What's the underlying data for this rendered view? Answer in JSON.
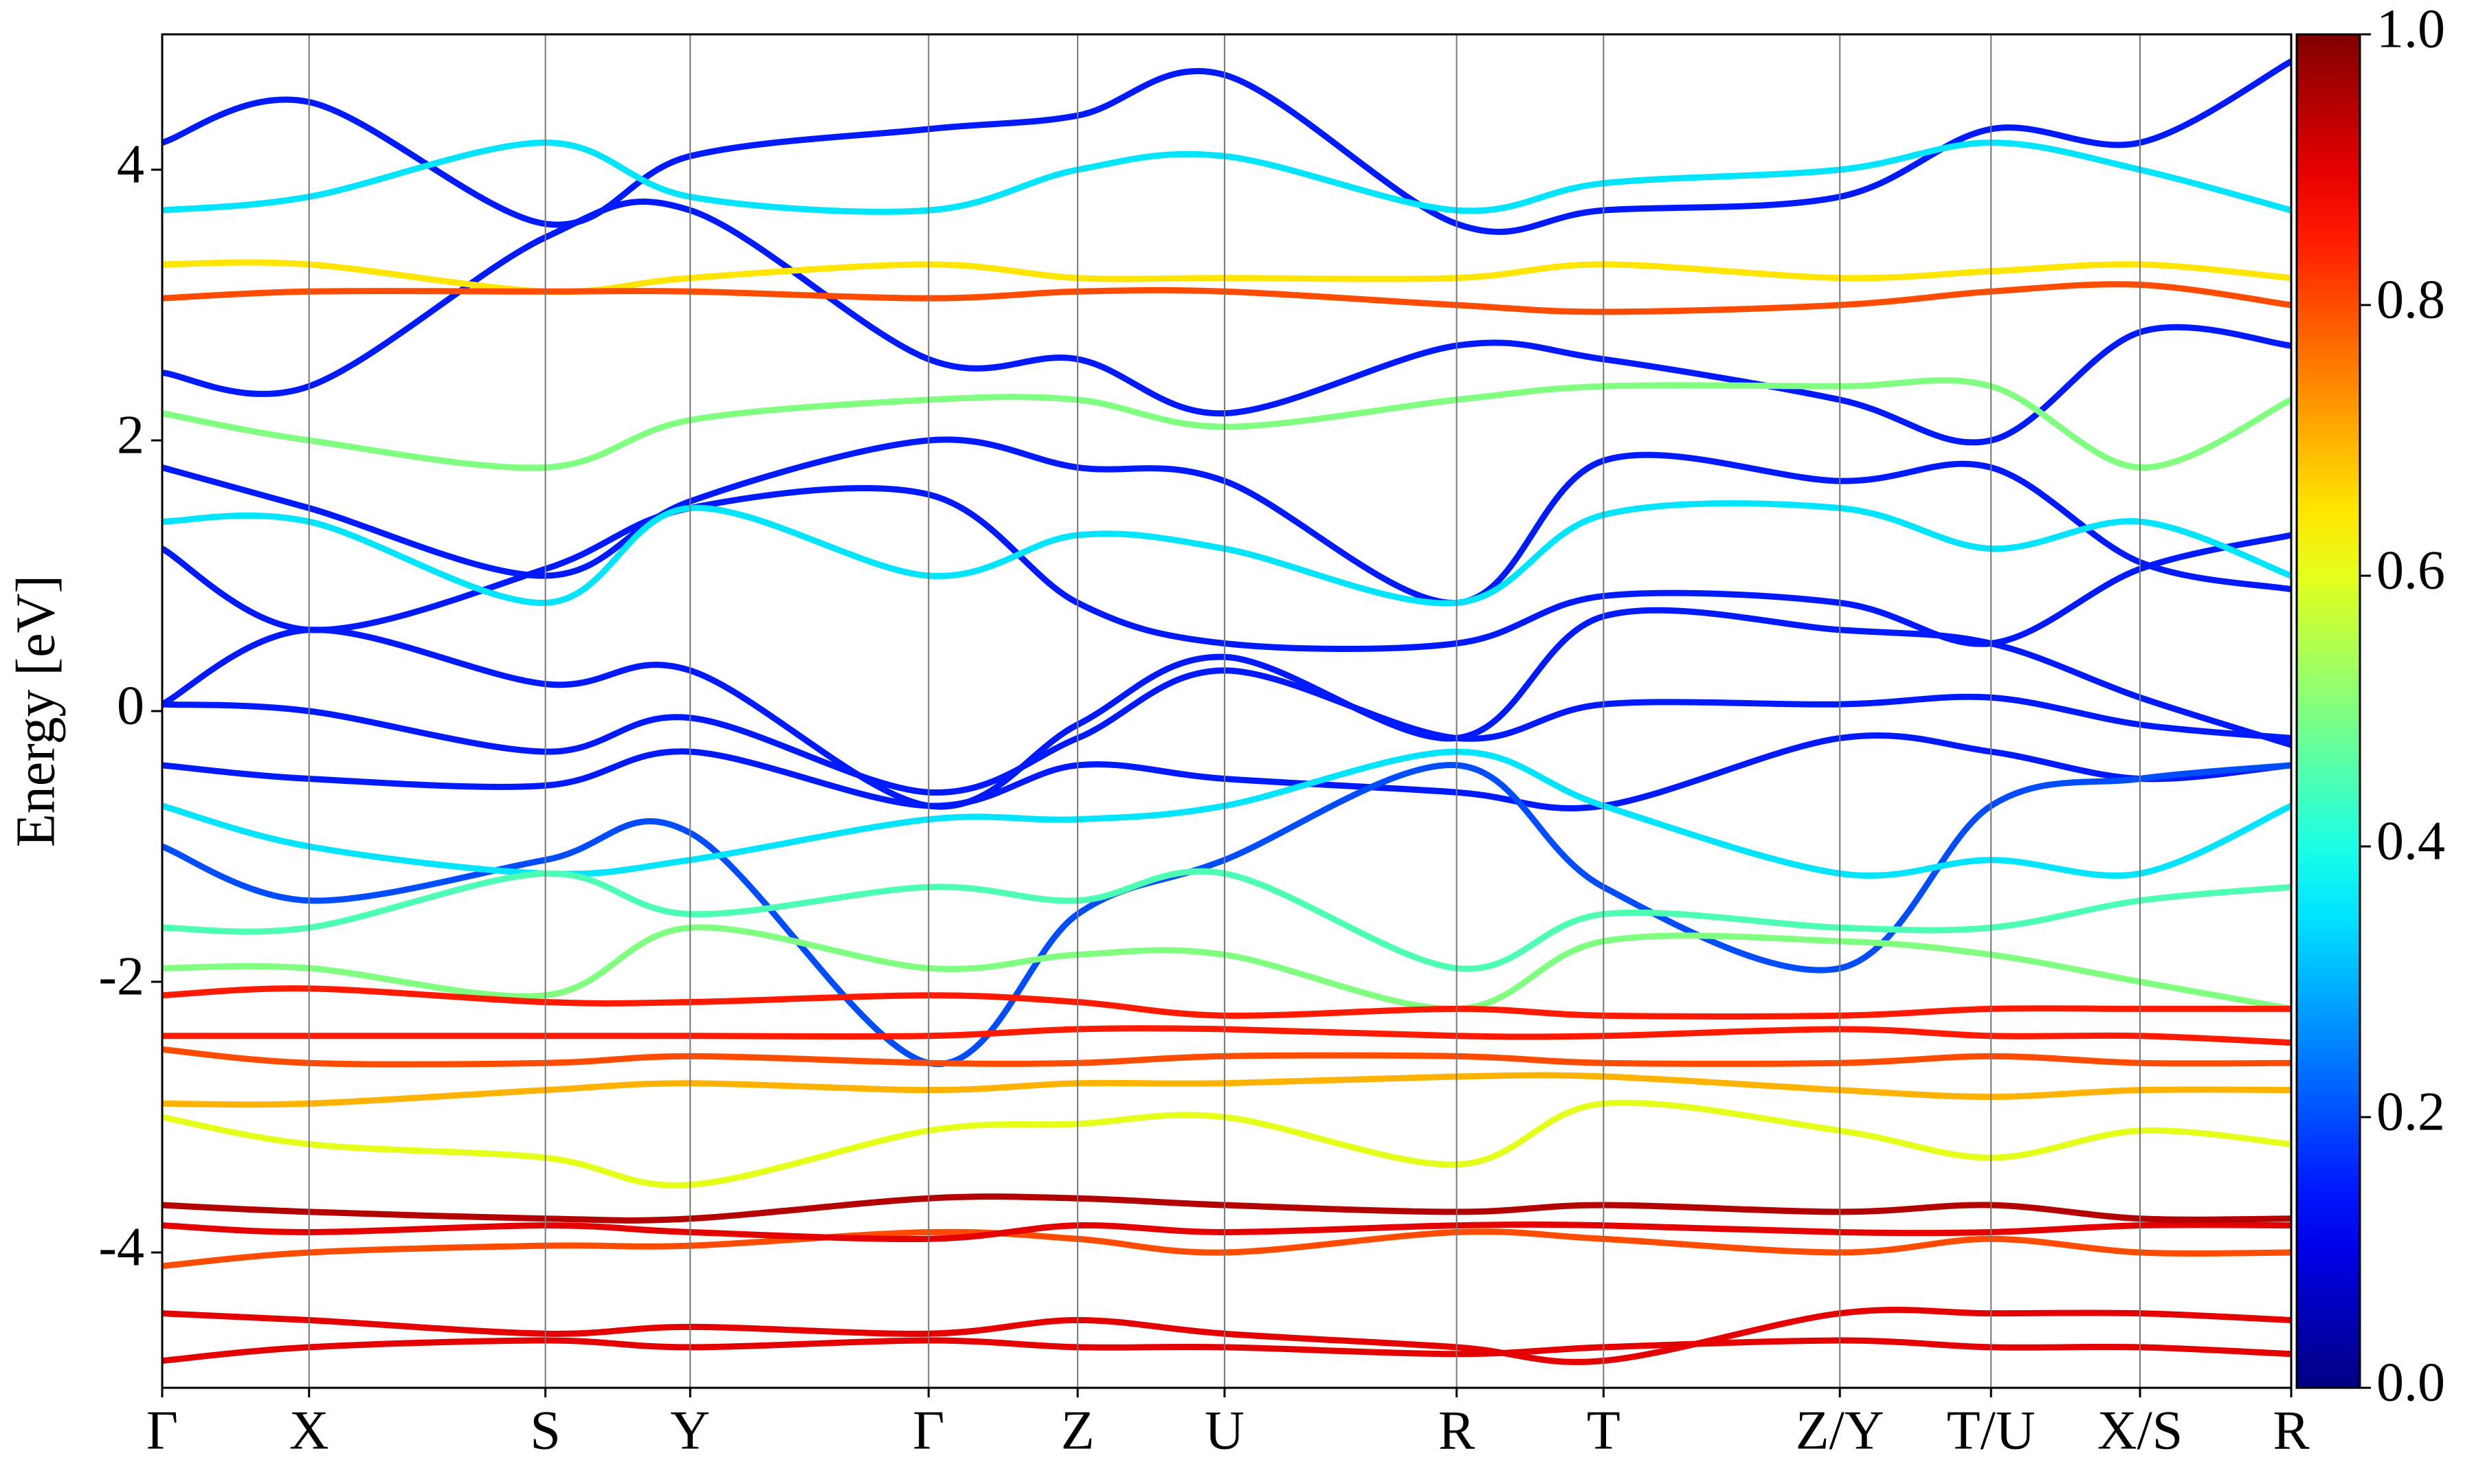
{
  "chart_data": {
    "type": "line",
    "y_label": "Energy [eV]",
    "xlim": [
      0,
      1
    ],
    "ylim": [
      -5,
      5
    ],
    "xticks": [
      {
        "value": 0,
        "label": "Γ"
      },
      {
        "value": 0.069,
        "label": "X"
      },
      {
        "value": 0.18,
        "label": "S"
      },
      {
        "value": 0.248,
        "label": "Y"
      },
      {
        "value": 0.36,
        "label": "Γ"
      },
      {
        "value": 0.43,
        "label": "Z"
      },
      {
        "value": 0.499,
        "label": "U"
      },
      {
        "value": 0.608,
        "label": "R"
      },
      {
        "value": 0.677,
        "label": "T"
      },
      {
        "value": 0.788,
        "label": "Z/Y"
      },
      {
        "value": 0.859,
        "label": "T/U"
      },
      {
        "value": 0.929,
        "label": "X/S"
      },
      {
        "value": 1,
        "label": "R"
      }
    ],
    "yticks": [
      -4,
      -2,
      0,
      2,
      4
    ],
    "grid": true,
    "colormap": "jet",
    "clim": [
      0,
      1
    ],
    "cticks": [
      {
        "value": 0,
        "label": "0.0"
      },
      {
        "value": 0.2,
        "label": "0.2"
      },
      {
        "value": 0.4,
        "label": "0.4"
      },
      {
        "value": 0.6,
        "label": "0.6"
      },
      {
        "value": 0.8,
        "label": "0.8"
      },
      {
        "value": 1,
        "label": "1.0"
      }
    ],
    "x": [
      0,
      0.069,
      0.18,
      0.248,
      0.36,
      0.43,
      0.499,
      0.608,
      0.677,
      0.788,
      0.859,
      0.929,
      1
    ],
    "series": [
      {
        "weight": 0.15,
        "values": [
          4.2,
          4.5,
          3.6,
          4.1,
          4.3,
          4.4,
          4.7,
          3.6,
          3.7,
          3.8,
          4.3,
          4.2,
          4.8
        ]
      },
      {
        "weight": 0.15,
        "values": [
          2.5,
          2.4,
          3.5,
          3.7,
          2.6,
          2.6,
          2.2,
          2.7,
          2.6,
          2.3,
          2.0,
          2.8,
          2.7
        ]
      },
      {
        "weight": 0.15,
        "values": [
          1.8,
          1.5,
          1.0,
          1.55,
          2.0,
          1.8,
          1.7,
          0.8,
          1.85,
          1.7,
          1.8,
          1.1,
          0.9
        ]
      },
      {
        "weight": 0.15,
        "values": [
          1.2,
          0.6,
          1.05,
          1.5,
          1.6,
          0.8,
          0.5,
          0.5,
          0.85,
          0.8,
          0.5,
          1.05,
          1.3
        ]
      },
      {
        "weight": 0.15,
        "values": [
          0.05,
          0.6,
          0.2,
          0.3,
          -0.7,
          -0.1,
          0.4,
          -0.2,
          0.7,
          0.6,
          0.5,
          0.1,
          -0.25
        ]
      },
      {
        "weight": 0.15,
        "values": [
          0.05,
          0.0,
          -0.3,
          -0.05,
          -0.6,
          -0.2,
          0.3,
          -0.2,
          0.05,
          0.05,
          0.1,
          -0.1,
          -0.2
        ]
      },
      {
        "weight": 0.15,
        "values": [
          -0.4,
          -0.5,
          -0.55,
          -0.3,
          -0.7,
          -0.4,
          -0.5,
          -0.6,
          -0.7,
          -0.2,
          -0.3,
          -0.5,
          -0.4
        ]
      },
      {
        "weight": 0.2,
        "values": [
          -1.0,
          -1.4,
          -1.1,
          -0.9,
          -2.6,
          -1.5,
          -1.1,
          -0.4,
          -1.3,
          -1.9,
          -0.7,
          -0.5,
          -0.4
        ]
      },
      {
        "weight": 0.35,
        "values": [
          3.7,
          3.8,
          4.2,
          3.8,
          3.7,
          4.0,
          4.1,
          3.7,
          3.9,
          4.0,
          4.2,
          4.0,
          3.7
        ]
      },
      {
        "weight": 0.35,
        "values": [
          1.4,
          1.4,
          0.8,
          1.5,
          1.0,
          1.3,
          1.2,
          0.8,
          1.45,
          1.5,
          1.2,
          1.4,
          1.0
        ]
      },
      {
        "weight": 0.35,
        "values": [
          -0.7,
          -1.0,
          -1.2,
          -1.1,
          -0.8,
          -0.8,
          -0.7,
          -0.3,
          -0.7,
          -1.2,
          -1.1,
          -1.2,
          -0.7
        ]
      },
      {
        "weight": 0.5,
        "values": [
          2.2,
          2.0,
          1.8,
          2.15,
          2.3,
          2.3,
          2.1,
          2.3,
          2.4,
          2.4,
          2.4,
          1.8,
          2.3
        ]
      },
      {
        "weight": 0.5,
        "values": [
          -1.9,
          -1.9,
          -2.1,
          -1.6,
          -1.9,
          -1.8,
          -1.8,
          -2.2,
          -1.7,
          -1.7,
          -1.8,
          -2.0,
          -2.2
        ]
      },
      {
        "weight": 0.45,
        "values": [
          -1.6,
          -1.6,
          -1.2,
          -1.5,
          -1.3,
          -1.4,
          -1.2,
          -1.9,
          -1.5,
          -1.6,
          -1.6,
          -1.4,
          -1.3
        ]
      },
      {
        "weight": 0.65,
        "values": [
          3.3,
          3.3,
          3.1,
          3.2,
          3.3,
          3.2,
          3.2,
          3.2,
          3.3,
          3.2,
          3.25,
          3.3,
          3.2
        ]
      },
      {
        "weight": 0.8,
        "values": [
          3.05,
          3.1,
          3.1,
          3.1,
          3.05,
          3.1,
          3.1,
          3.0,
          2.95,
          3.0,
          3.1,
          3.15,
          3.0
        ]
      },
      {
        "weight": 0.6,
        "values": [
          -3.0,
          -3.2,
          -3.3,
          -3.5,
          -3.1,
          -3.05,
          -3.0,
          -3.35,
          -2.9,
          -3.1,
          -3.3,
          -3.1,
          -3.2
        ]
      },
      {
        "weight": 0.7,
        "values": [
          -2.9,
          -2.9,
          -2.8,
          -2.75,
          -2.8,
          -2.75,
          -2.75,
          -2.7,
          -2.7,
          -2.8,
          -2.85,
          -2.8,
          -2.8
        ]
      },
      {
        "weight": 0.8,
        "values": [
          -2.5,
          -2.6,
          -2.6,
          -2.55,
          -2.6,
          -2.6,
          -2.55,
          -2.55,
          -2.6,
          -2.6,
          -2.55,
          -2.6,
          -2.6
        ]
      },
      {
        "weight": 0.85,
        "values": [
          -2.4,
          -2.4,
          -2.4,
          -2.4,
          -2.4,
          -2.35,
          -2.35,
          -2.4,
          -2.4,
          -2.35,
          -2.4,
          -2.4,
          -2.45
        ]
      },
      {
        "weight": 0.85,
        "values": [
          -2.1,
          -2.05,
          -2.15,
          -2.15,
          -2.1,
          -2.15,
          -2.25,
          -2.2,
          -2.25,
          -2.25,
          -2.2,
          -2.2,
          -2.2
        ]
      },
      {
        "weight": 0.8,
        "values": [
          -4.1,
          -4.0,
          -3.95,
          -3.95,
          -3.85,
          -3.9,
          -4.0,
          -3.85,
          -3.9,
          -4.0,
          -3.9,
          -4.0,
          -4.0
        ]
      },
      {
        "weight": 0.9,
        "values": [
          -3.8,
          -3.85,
          -3.8,
          -3.85,
          -3.9,
          -3.8,
          -3.85,
          -3.8,
          -3.8,
          -3.85,
          -3.85,
          -3.8,
          -3.8
        ]
      },
      {
        "weight": 0.95,
        "values": [
          -3.65,
          -3.7,
          -3.75,
          -3.75,
          -3.6,
          -3.6,
          -3.65,
          -3.7,
          -3.65,
          -3.7,
          -3.65,
          -3.75,
          -3.75
        ]
      },
      {
        "weight": 0.9,
        "values": [
          -4.45,
          -4.5,
          -4.6,
          -4.55,
          -4.6,
          -4.5,
          -4.6,
          -4.7,
          -4.8,
          -4.45,
          -4.45,
          -4.45,
          -4.5
        ]
      },
      {
        "weight": 0.9,
        "values": [
          -4.8,
          -4.7,
          -4.65,
          -4.7,
          -4.65,
          -4.7,
          -4.7,
          -4.75,
          -4.7,
          -4.65,
          -4.7,
          -4.7,
          -4.75
        ]
      }
    ]
  }
}
